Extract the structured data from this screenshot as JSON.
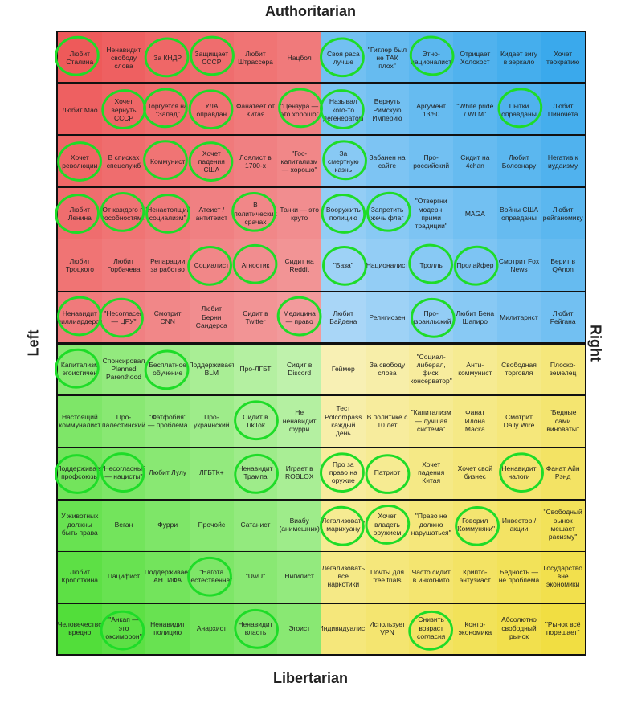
{
  "axes": {
    "top": "Authoritarian",
    "bottom": "Libertarian",
    "left": "Left",
    "right": "Right"
  },
  "colors": {
    "auth_left": [
      "#ee5a5a",
      "#f29a9c"
    ],
    "auth_right": [
      "#3aa9ec",
      "#a9d6f7"
    ],
    "lib_left": [
      "#52de3a",
      "#bff2ac"
    ],
    "lib_right": [
      "#f1de42",
      "#f8f0b4"
    ],
    "circle": "#1edc28"
  },
  "rows": [
    [
      "Любит Сталина",
      "Ненавидит свободу слова",
      "За КНДР",
      "Защищает СССР",
      "Любит Штрассера",
      "Нацбол",
      "Своя раса лучше",
      "\"Гитлер был не ТАК плох\"",
      "Этно-националист",
      "Отрицает Холокост",
      "Кидает зигу в зеркало",
      "Хочет теократию"
    ],
    [
      "Любит Мао",
      "Хочет вернуть СССР",
      "Торгуется на \"Запад\"",
      "ГУЛАГ оправдан",
      "Фанатеет от Китая",
      "\"Цензура — это хорошо\"",
      "Называл кого-то дегенератом",
      "Вернуть Римскую Империю",
      "Аргумент 13/50",
      "\"White pride / WLM\"",
      "Пытки оправданы",
      "Любит Пиночета"
    ],
    [
      "Хочет революции",
      "В списках спецслужб",
      "Коммунист",
      "Хочет падения США",
      "Лоялист в 1700-х",
      "\"Гос-капитализм — хорошо\"",
      "За смертную казнь",
      "Забанен на сайте",
      "Про-российский",
      "Сидит на 4chan",
      "Любит Болсонару",
      "Негатив к иудаизму"
    ],
    [
      "Любит Ленина",
      "\"От каждого по способностям...\"",
      "\"Ненастоящий социализм\"",
      "Атеист / антитеист",
      "В политических срачах",
      "Танки — это круто",
      "Вооружить полицию",
      "Запретить жечь флаг",
      "\"Отвергни модерн, прими традиции\"",
      "MAGA",
      "Войны США оправданы",
      "Любит рейганомику"
    ],
    [
      "Любит Троцкого",
      "Любит Горбачева",
      "Репарации за рабство",
      "Социалист",
      "Агностик",
      "Сидит на Reddit",
      "\"База\"",
      "Националист",
      "Тролль",
      "Пролайфер",
      "Смотрит Fox News",
      "Верит в QAnon"
    ],
    [
      "Ненавидит миллиардеров",
      "\"Несогласен — ЦРУ\"",
      "Смотрит CNN",
      "Любит Берни Сандерса",
      "Сидит в Twitter",
      "Медицина — право",
      "Любит Байдена",
      "Религиозен",
      "Про-израильский",
      "Любит Бена Шапиро",
      "Милитарист",
      "Любит Рейгана"
    ],
    [
      "Капитализм эгоистичен",
      "Спонсировал Planned Parenthood",
      "Бесплатное обучение",
      "Поддерживает BLM",
      "Про-ЛГБТ",
      "Сидит в Discord",
      "Геймер",
      "За свободу слова",
      "\"Социал-либерал, фиск. консерватор\"",
      "Анти-коммунист",
      "Свободная торговля",
      "Плоско-земелец"
    ],
    [
      "Настоящий коммуналист",
      "Про-палестинский",
      "\"Фэтфобия\" — проблема",
      "Про-украинский",
      "Сидит в TikTok",
      "Не ненавидит фурри",
      "Тест Polcompass каждый день",
      "В политике с 10 лет",
      "\"Капитализм — лучшая система\"",
      "Фанат Илона Маска",
      "Смотрит Daily Wire",
      "\"Бедные сами виноваты\""
    ],
    [
      "Поддерживает профсоюзы",
      "\"Несогласный — нацисты\"",
      "Любит Лулу",
      "ЛГБТК+",
      "Ненавидит Трампа",
      "Играет в ROBLOX",
      "Про за право на оружие",
      "Патриот",
      "Хочет падения Китая",
      "Хочет свой бизнес",
      "Ненавидит налоги",
      "Фанат Айн Рэнд"
    ],
    [
      "У животных должны быть права",
      "Веган",
      "Фурри",
      "Прочойс",
      "Сатанист",
      "Виабу (анимешник)",
      "Легализовать марихуану",
      "Хочет владеть оружием",
      "\"Право не должно нарушаться\"",
      "Говорил \"Коммуняки\"",
      "Инвестор / акции",
      "\"Свободный рынок мешает расизму\""
    ],
    [
      "Любит Кропоткина",
      "Пацифист",
      "Поддерживает АНТИФА",
      "\"Нагота естественна\"",
      "\"UwU\"",
      "Нигилист",
      "Легализовать все наркотики",
      "Почты для free trials",
      "Часто сидит в инкогнито",
      "Крипто-энтузиаст",
      "Бедность — не проблема",
      "Государство вне экономики"
    ],
    [
      "Человечество вредно",
      "\"Анкап — это оксиморон\"",
      "Ненавидит полицию",
      "Анархист",
      "Ненавидит власть",
      "Эгоист",
      "Индивидуалист",
      "Использует VPN",
      "Снизить возраст согласия",
      "Контр-экономика",
      "Абсолютно свободный рынок",
      "\"Рынок всё порешает\""
    ]
  ],
  "circled": [
    [
      0,
      0
    ],
    [
      0,
      2
    ],
    [
      0,
      3
    ],
    [
      0,
      6
    ],
    [
      0,
      8
    ],
    [
      1,
      1
    ],
    [
      1,
      2
    ],
    [
      1,
      3
    ],
    [
      1,
      5
    ],
    [
      1,
      6
    ],
    [
      1,
      10
    ],
    [
      2,
      0
    ],
    [
      2,
      2
    ],
    [
      2,
      3
    ],
    [
      2,
      6
    ],
    [
      3,
      0
    ],
    [
      3,
      1
    ],
    [
      3,
      2
    ],
    [
      3,
      4
    ],
    [
      3,
      6
    ],
    [
      3,
      7
    ],
    [
      4,
      3
    ],
    [
      4,
      4
    ],
    [
      4,
      6
    ],
    [
      4,
      8
    ],
    [
      4,
      9
    ],
    [
      5,
      0
    ],
    [
      5,
      1
    ],
    [
      5,
      5
    ],
    [
      5,
      8
    ],
    [
      6,
      0
    ],
    [
      6,
      2
    ],
    [
      7,
      4
    ],
    [
      8,
      0
    ],
    [
      8,
      1
    ],
    [
      8,
      4
    ],
    [
      8,
      6
    ],
    [
      8,
      7
    ],
    [
      8,
      10
    ],
    [
      9,
      6
    ],
    [
      9,
      7
    ],
    [
      9,
      9
    ],
    [
      10,
      3
    ],
    [
      11,
      1
    ],
    [
      11,
      4
    ],
    [
      11,
      8
    ]
  ]
}
